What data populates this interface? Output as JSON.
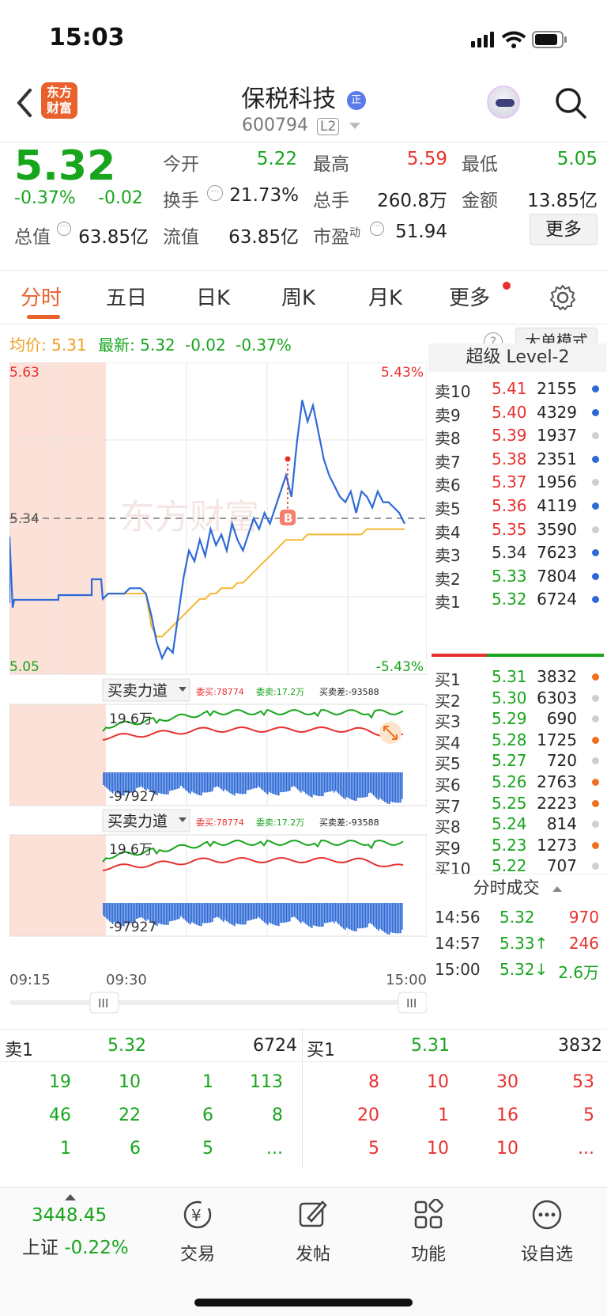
{
  "status_bar": {
    "time": "15:03"
  },
  "header": {
    "logo_text_top": "东方",
    "logo_text_bottom": "财富",
    "title": "保税科技",
    "badge": "正",
    "code": "600794",
    "level": "L2"
  },
  "quote": {
    "price": "5.32",
    "pct_change": "-0.37%",
    "change": "-0.02",
    "open_label": "今开",
    "open": "5.22",
    "high_label": "最高",
    "high": "5.59",
    "low_label": "最低",
    "low": "5.05",
    "turnover_label": "换手",
    "turnover": "21.73%",
    "volume_label": "总手",
    "volume": "260.8万",
    "amount_label": "金额",
    "amount": "13.85亿",
    "mktcap_label": "总值",
    "mktcap": "63.85亿",
    "float_label": "流值",
    "float": "63.85亿",
    "pe_label": "市盈",
    "pe_sup": "动",
    "pe": "51.94",
    "more_button": "更多"
  },
  "tabs": [
    "分时",
    "五日",
    "日K",
    "周K",
    "月K",
    "更多"
  ],
  "chart_info": {
    "avg_label": "均价:",
    "avg": "5.31",
    "latest_label": "最新:",
    "latest": "5.32",
    "latest_change": "-0.02",
    "latest_pct": "-0.37%",
    "big_order_mode": "大单模式"
  },
  "chart_axis": {
    "price_top": "5.63",
    "price_mid": "5.34",
    "price_bottom": "5.05",
    "pct_top": "5.43%",
    "pct_bottom": "-5.43%",
    "time_start": "09:15",
    "time_mid": "09:30",
    "time_end": "15:00"
  },
  "chart_data": {
    "type": "line",
    "series": [
      {
        "name": "price",
        "values": [
          5.19,
          5.2,
          5.2,
          5.2,
          5.2,
          5.21,
          5.21,
          5.21,
          5.2,
          5.16,
          5.11,
          5.08,
          5.1,
          5.09,
          5.16,
          5.23,
          5.28,
          5.26,
          5.3,
          5.27,
          5.32,
          5.29,
          5.31,
          5.28,
          5.33,
          5.3,
          5.28,
          5.31,
          5.34,
          5.32,
          5.35,
          5.33,
          5.36,
          5.39,
          5.42,
          5.38,
          5.48,
          5.56,
          5.52,
          5.55,
          5.5,
          5.45,
          5.42,
          5.4,
          5.38,
          5.37,
          5.39,
          5.35,
          5.39,
          5.38,
          5.36,
          5.39,
          5.37,
          5.37,
          5.36,
          5.35,
          5.33
        ]
      },
      {
        "name": "avg",
        "values": [
          5.19,
          5.2,
          5.2,
          5.2,
          5.2,
          5.2,
          5.2,
          5.2,
          5.2,
          5.14,
          5.12,
          5.12,
          5.13,
          5.14,
          5.15,
          5.16,
          5.17,
          5.18,
          5.19,
          5.19,
          5.2,
          5.2,
          5.21,
          5.21,
          5.21,
          5.22,
          5.22,
          5.23,
          5.24,
          5.25,
          5.26,
          5.27,
          5.28,
          5.29,
          5.3,
          5.3,
          5.3,
          5.3,
          5.31,
          5.31,
          5.31,
          5.31,
          5.31,
          5.31,
          5.31,
          5.31,
          5.31,
          5.31,
          5.31,
          5.32,
          5.32,
          5.32,
          5.32,
          5.32,
          5.32,
          5.32,
          5.32
        ]
      }
    ],
    "ylim": [
      5.05,
      5.63
    ]
  },
  "flow_panel": {
    "title": "买卖力道",
    "buy_label": "委买:78774",
    "sell_label": "委卖:17.2万",
    "diff_label": "买卖差:-93588",
    "top_value": "19.6万",
    "bottom_value": "-97927"
  },
  "level2": {
    "title": "超级 Level-2",
    "asks": [
      {
        "label": "卖10",
        "price": "5.41",
        "vol": "2155",
        "color": "#2e6ad6"
      },
      {
        "label": "卖9",
        "price": "5.40",
        "vol": "4329",
        "color": "#2e6ad6"
      },
      {
        "label": "卖8",
        "price": "5.39",
        "vol": "1937",
        "color": "#cfcfcf"
      },
      {
        "label": "卖7",
        "price": "5.38",
        "vol": "2351",
        "color": "#2e6ad6"
      },
      {
        "label": "卖6",
        "price": "5.37",
        "vol": "1956",
        "color": "#cfcfcf"
      },
      {
        "label": "卖5",
        "price": "5.36",
        "vol": "4119",
        "color": "#2e6ad6"
      },
      {
        "label": "卖4",
        "price": "5.35",
        "vol": "3590",
        "color": "#cfcfcf"
      },
      {
        "label": "卖3",
        "price": "5.34",
        "vol": "7623",
        "color": "#2e6ad6"
      },
      {
        "label": "卖2",
        "price": "5.33",
        "vol": "7804",
        "color": "#2e6ad6"
      },
      {
        "label": "卖1",
        "price": "5.32",
        "vol": "6724",
        "color": "#2e6ad6"
      }
    ],
    "bids": [
      {
        "label": "买1",
        "price": "5.31",
        "vol": "3832",
        "color": "#f07020"
      },
      {
        "label": "买2",
        "price": "5.30",
        "vol": "6303",
        "color": "#cfcfcf"
      },
      {
        "label": "买3",
        "price": "5.29",
        "vol": "690",
        "color": "#cfcfcf"
      },
      {
        "label": "买4",
        "price": "5.28",
        "vol": "1725",
        "color": "#f07020"
      },
      {
        "label": "买5",
        "price": "5.27",
        "vol": "720",
        "color": "#cfcfcf"
      },
      {
        "label": "买6",
        "price": "5.26",
        "vol": "2763",
        "color": "#f07020"
      },
      {
        "label": "买7",
        "price": "5.25",
        "vol": "2223",
        "color": "#f07020"
      },
      {
        "label": "买8",
        "price": "5.24",
        "vol": "814",
        "color": "#cfcfcf"
      },
      {
        "label": "买9",
        "price": "5.23",
        "vol": "1273",
        "color": "#f07020"
      },
      {
        "label": "买10",
        "price": "5.22",
        "vol": "707",
        "color": "#cfcfcf"
      }
    ],
    "trades_title": "分时成交",
    "trades": [
      {
        "time": "14:56",
        "price": "5.32",
        "vol": "970"
      },
      {
        "time": "14:57",
        "price": "5.33↑",
        "vol": "246"
      },
      {
        "time": "15:00",
        "price": "5.32↓",
        "vol": "2.6万"
      }
    ]
  },
  "queue": {
    "sell_label": "卖1",
    "sell_price": "5.32",
    "sell_total": "6724",
    "buy_label": "买1",
    "buy_price": "5.31",
    "buy_total": "3832",
    "sell_rows": [
      [
        "19",
        "10",
        "1",
        "113"
      ],
      [
        "46",
        "22",
        "6",
        "8"
      ],
      [
        "1",
        "6",
        "5",
        "..."
      ]
    ],
    "buy_rows": [
      [
        "8",
        "10",
        "30",
        "53"
      ],
      [
        "20",
        "1",
        "16",
        "5"
      ],
      [
        "5",
        "10",
        "10",
        "..."
      ]
    ]
  },
  "bottom_nav": {
    "index_value": "3448.45",
    "index_name": "上证",
    "index_change": "-0.22%",
    "items": [
      "交易",
      "发帖",
      "功能",
      "设自选"
    ]
  },
  "colors": {
    "up": "#e8312f",
    "down": "#17a51c",
    "accent": "#e8612c",
    "line": "#2e6ad6",
    "avg": "#f5b731"
  }
}
